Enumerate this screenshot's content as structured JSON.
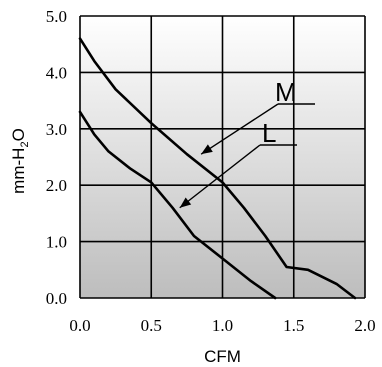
{
  "chart_data": {
    "type": "line",
    "title": "",
    "xlabel": "CFM",
    "ylabel": {
      "prefix": "mm-H",
      "subscript": "2",
      "suffix": "O"
    },
    "xlim": [
      0,
      2
    ],
    "ylim": [
      0,
      5
    ],
    "x_ticks": [
      "0.0",
      "0.5",
      "1.0",
      "1.5",
      "2.0"
    ],
    "y_ticks": [
      "0.0",
      "1.0",
      "2.0",
      "3.0",
      "4.0",
      "5.0"
    ],
    "grid": true,
    "background": "vertical gradient gray",
    "series": [
      {
        "name": "M",
        "points": [
          [
            0.0,
            4.6
          ],
          [
            0.1,
            4.2
          ],
          [
            0.25,
            3.7
          ],
          [
            0.5,
            3.1
          ],
          [
            0.75,
            2.55
          ],
          [
            1.0,
            2.05
          ],
          [
            1.15,
            1.6
          ],
          [
            1.3,
            1.1
          ],
          [
            1.45,
            0.55
          ],
          [
            1.6,
            0.5
          ],
          [
            1.8,
            0.25
          ],
          [
            1.93,
            0.0
          ]
        ]
      },
      {
        "name": "L",
        "points": [
          [
            0.0,
            3.3
          ],
          [
            0.1,
            2.9
          ],
          [
            0.2,
            2.6
          ],
          [
            0.35,
            2.3
          ],
          [
            0.5,
            2.05
          ],
          [
            0.65,
            1.6
          ],
          [
            0.8,
            1.1
          ],
          [
            1.0,
            0.7
          ],
          [
            1.2,
            0.3
          ],
          [
            1.37,
            0.0
          ]
        ]
      }
    ],
    "legend": [
      {
        "label": "M",
        "arrow_target": [
          0.85,
          2.55
        ]
      },
      {
        "label": "L",
        "arrow_target": [
          0.7,
          1.6
        ]
      }
    ],
    "colors": {
      "line": "#000000",
      "grid": "#000000",
      "bg_top": "#ffffff",
      "bg_bottom": "#bdbdbd"
    }
  }
}
